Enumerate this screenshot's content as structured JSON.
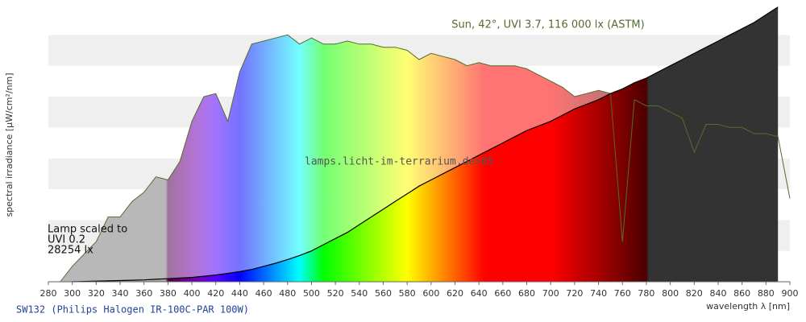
{
  "chart_data": {
    "type": "spectrum",
    "y_label": "spectral irradiance [µW/cm²/nm]",
    "x_label": "wavelength λ [nm]",
    "watermark": "lamps.licht-im-terrarium.de>85",
    "annotations": [
      "Lamp scaled to",
      "UVI 0.2",
      "28254 lx"
    ],
    "xlim": [
      280,
      900
    ],
    "ylim": [
      0,
      9
    ],
    "xticks": [
      280,
      300,
      320,
      340,
      360,
      380,
      400,
      420,
      440,
      460,
      480,
      500,
      520,
      540,
      560,
      580,
      600,
      620,
      640,
      660,
      680,
      700,
      720,
      740,
      760,
      780,
      800,
      820,
      840,
      860,
      880,
      900
    ],
    "x": [
      280,
      290,
      300,
      310,
      320,
      330,
      340,
      350,
      360,
      370,
      380,
      390,
      400,
      410,
      420,
      430,
      440,
      450,
      460,
      470,
      480,
      490,
      500,
      510,
      520,
      530,
      540,
      550,
      560,
      570,
      580,
      590,
      600,
      610,
      620,
      630,
      640,
      650,
      660,
      670,
      680,
      690,
      700,
      710,
      720,
      730,
      740,
      750,
      760,
      770,
      780,
      790,
      800,
      810,
      820,
      830,
      840,
      850,
      860,
      870,
      880,
      890,
      900
    ],
    "series": [
      {
        "name": "Sun, 42°, UVI 3.7, 116 000 lx (ASTM)",
        "color": "#556b2f",
        "values": [
          null,
          0,
          0.5,
          0.9,
          1.3,
          2.1,
          2.1,
          2.6,
          2.9,
          3.4,
          3.3,
          3.9,
          5.2,
          6.0,
          6.1,
          5.2,
          6.8,
          7.7,
          7.8,
          7.9,
          8.0,
          7.7,
          7.9,
          7.7,
          7.7,
          7.8,
          7.7,
          7.7,
          7.6,
          7.6,
          7.5,
          7.2,
          7.4,
          7.3,
          7.2,
          7.0,
          7.1,
          7.0,
          7.0,
          7.0,
          6.9,
          6.7,
          6.5,
          6.3,
          6.0,
          6.1,
          6.2,
          6.1,
          1.3,
          5.9,
          5.7,
          5.7,
          5.5,
          5.3,
          4.2,
          5.1,
          5.1,
          5.0,
          5.0,
          4.8,
          4.8,
          4.7,
          2.7
        ]
      },
      {
        "name": "SW132 (Philips Halogen IR-100C-PAR 100W)",
        "color": "#000000",
        "values": [
          null,
          null,
          0,
          0.01,
          0.02,
          0.03,
          0.04,
          0.05,
          0.06,
          0.08,
          0.1,
          0.12,
          0.14,
          0.18,
          0.22,
          0.27,
          0.33,
          0.4,
          0.5,
          0.6,
          0.72,
          0.85,
          1.0,
          1.2,
          1.4,
          1.6,
          1.85,
          2.1,
          2.35,
          2.6,
          2.85,
          3.1,
          3.3,
          3.5,
          3.7,
          3.9,
          4.1,
          4.3,
          4.5,
          4.7,
          4.9,
          5.05,
          5.2,
          5.4,
          5.6,
          5.75,
          5.9,
          6.1,
          6.25,
          6.45,
          6.6,
          6.8,
          7.0,
          7.2,
          7.4,
          7.6,
          7.8,
          8.0,
          8.2,
          8.4,
          8.65,
          8.9,
          null
        ]
      }
    ]
  }
}
